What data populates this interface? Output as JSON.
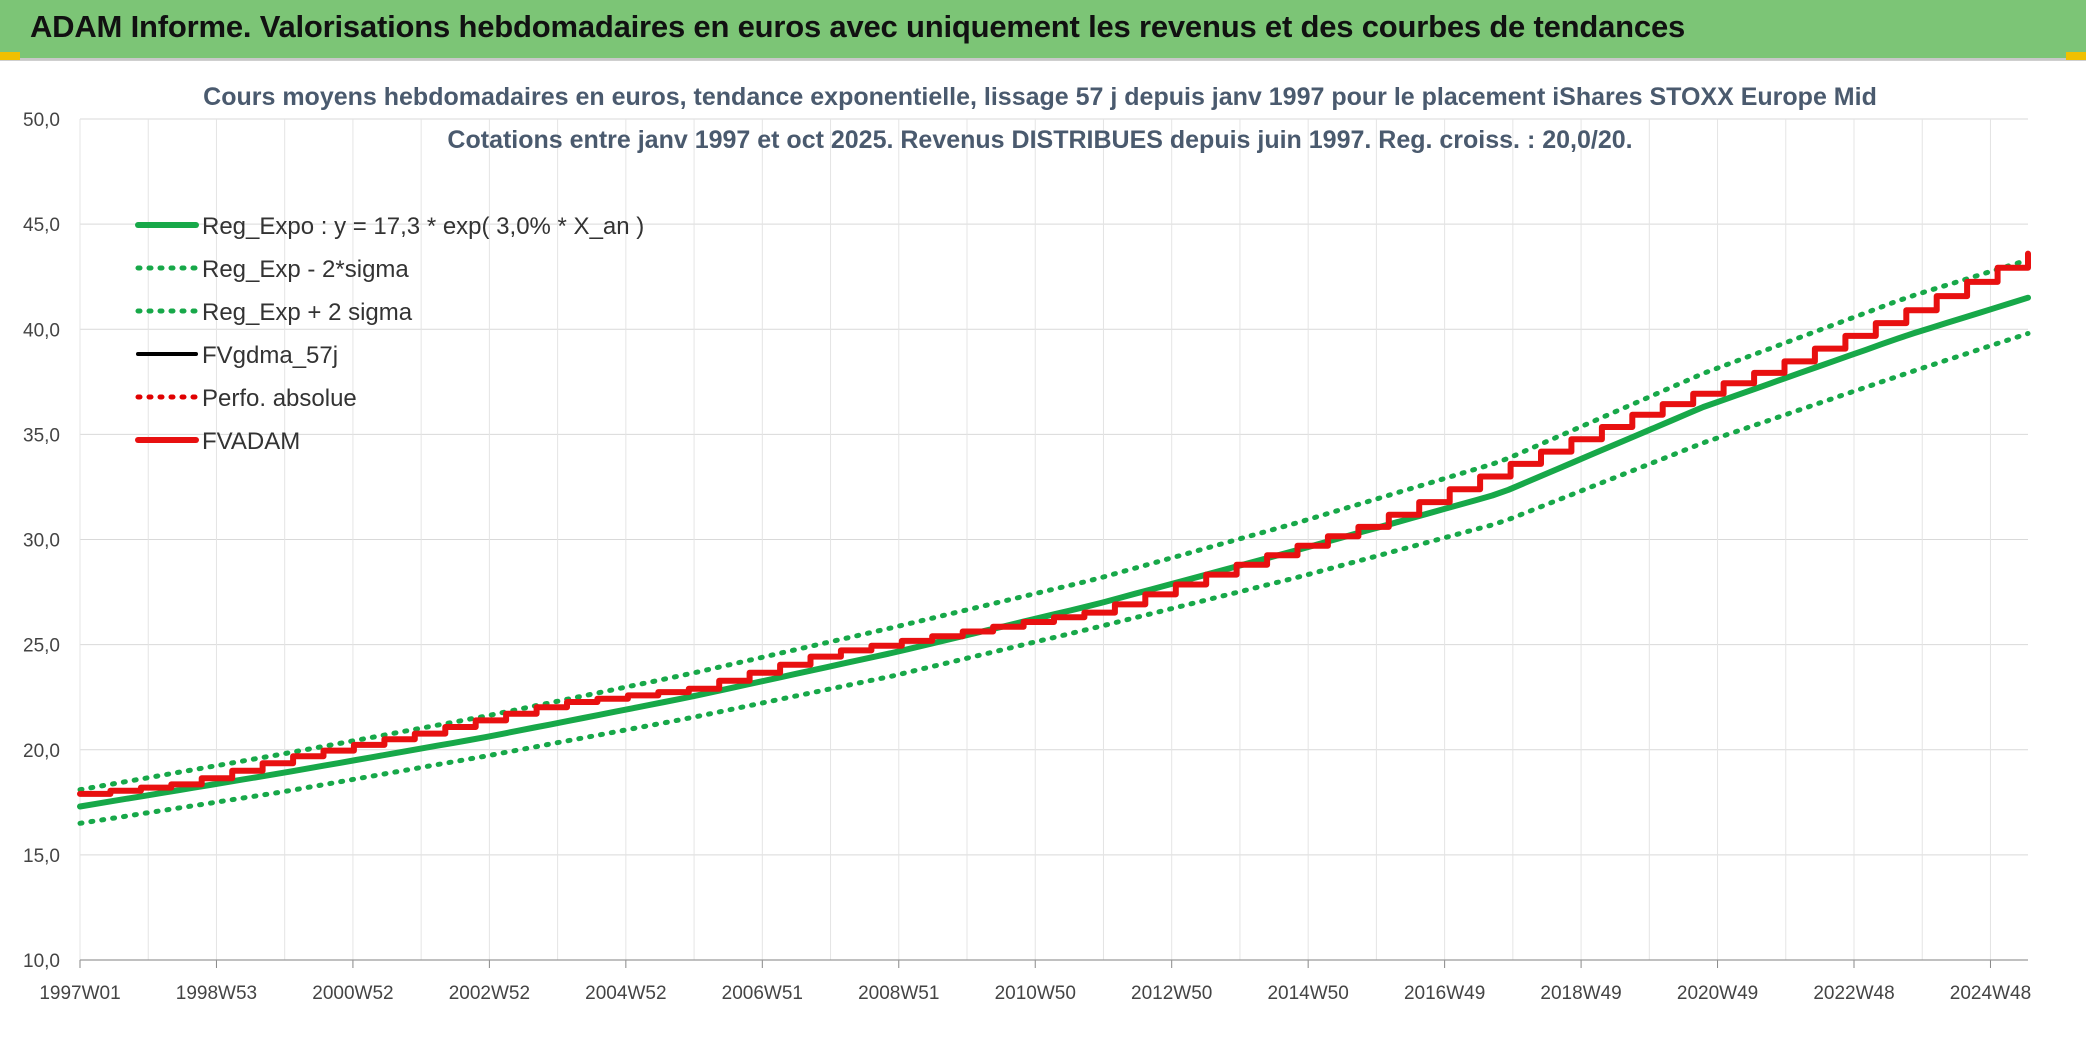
{
  "header": {
    "title": "ADAM Informe. Valorisations hebdomadaires en euros avec uniquement les revenus et des courbes de tendances"
  },
  "chart_data": {
    "type": "line",
    "title": "Cours moyens hebdomadaires en euros, tendance exponentielle, lissage 57 j depuis janv 1997 pour le placement iShares STOXX Europe Mid",
    "subtitle": "Cotations entre janv 1997 et oct 2025. Revenus DISTRIBUES depuis juin 1997. Reg. croiss. : 20,0/20.",
    "xlabel": "",
    "ylabel": "",
    "ylim": [
      10,
      50
    ],
    "y_ticks": [
      "10,0",
      "15,0",
      "20,0",
      "25,0",
      "30,0",
      "35,0",
      "40,0",
      "45,0",
      "50,0"
    ],
    "x_tick_labels": [
      "1997W01",
      "1998W53",
      "2000W52",
      "2002W52",
      "2004W52",
      "2006W51",
      "2008W51",
      "2010W50",
      "2012W50",
      "2014W50",
      "2016W49",
      "2018W49",
      "2020W49",
      "2022W48",
      "2024W48"
    ],
    "x_range": [
      1997.0,
      2025.8
    ],
    "grid": true,
    "legend_position": "top-left",
    "legend": [
      {
        "name": "Reg_Expo : y = 17,3 * exp( 3,0% *  X_an )",
        "color": "#17a849",
        "style": "solid-thick"
      },
      {
        "name": "Reg_Exp - 2*sigma",
        "color": "#17a849",
        "style": "dotted"
      },
      {
        "name": "Reg_Exp + 2 sigma",
        "color": "#17a849",
        "style": "dotted"
      },
      {
        "name": "FVgdma_57j",
        "color": "#000000",
        "style": "solid"
      },
      {
        "name": "Perfo. absolue",
        "color": "#e00000",
        "style": "dotted"
      },
      {
        "name": "FVADAM",
        "color": "#e81010",
        "style": "solid-thick"
      }
    ],
    "series": [
      {
        "name": "Reg_Expo : y = 17,3 * exp( 3,0% *  X_an )",
        "x": [
          1997.0,
          2000.0,
          2003.0,
          2006.0,
          2009.0,
          2012.0,
          2015.0,
          2018.0,
          2021.0,
          2024.0,
          2025.8
        ],
        "values": [
          17.3,
          18.9,
          20.6,
          22.5,
          24.6,
          26.9,
          29.5,
          32.2,
          36.3,
          39.7,
          41.5
        ]
      },
      {
        "name": "Reg_Exp - 2*sigma",
        "x": [
          1997.0,
          2000.0,
          2003.0,
          2006.0,
          2009.0,
          2012.0,
          2015.0,
          2018.0,
          2021.0,
          2024.0,
          2025.8
        ],
        "values": [
          16.5,
          18.0,
          19.7,
          21.5,
          23.5,
          25.8,
          28.2,
          30.8,
          34.6,
          37.9,
          39.8
        ]
      },
      {
        "name": "Reg_Exp + 2 sigma",
        "x": [
          1997.0,
          2000.0,
          2003.0,
          2006.0,
          2009.0,
          2012.0,
          2015.0,
          2018.0,
          2021.0,
          2024.0,
          2025.8
        ],
        "values": [
          18.1,
          19.8,
          21.6,
          23.6,
          25.8,
          28.1,
          30.8,
          33.7,
          37.9,
          41.5,
          43.3
        ]
      },
      {
        "name": "FVgdma_57j",
        "x": [
          1997.0,
          1998.5,
          2000.0,
          2002.0,
          2004.0,
          2006.0,
          2008.0,
          2010.0,
          2012.0,
          2014.0,
          2016.0,
          2018.0,
          2020.0,
          2022.0,
          2024.0,
          2025.8
        ],
        "values": [
          17.9,
          18.4,
          19.6,
          20.8,
          22.2,
          22.9,
          24.6,
          25.6,
          26.6,
          28.7,
          30.7,
          33.4,
          36.0,
          38.2,
          40.9,
          43.6
        ]
      },
      {
        "name": "FVADAM",
        "x": [
          1997.0,
          1998.5,
          2000.0,
          2002.0,
          2004.0,
          2006.0,
          2008.0,
          2010.0,
          2012.0,
          2014.0,
          2016.0,
          2018.0,
          2020.0,
          2022.0,
          2024.0,
          2025.8
        ],
        "values": [
          17.9,
          18.4,
          19.6,
          20.8,
          22.2,
          22.9,
          24.6,
          25.6,
          26.6,
          28.7,
          30.7,
          33.4,
          36.0,
          38.2,
          40.9,
          43.6
        ]
      }
    ]
  }
}
